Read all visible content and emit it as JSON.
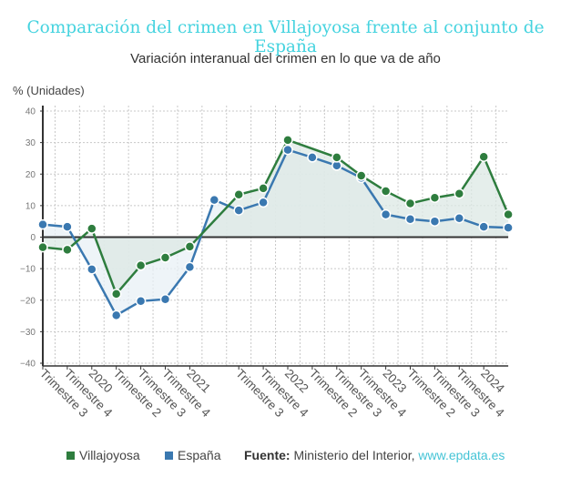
{
  "header": {
    "title": "Comparación del crimen en Villajoyosa frente al conjunto de España",
    "subtitle": "Variación interanual del crimen en lo que va de año",
    "y_unit": "% (Unidades)"
  },
  "legend": {
    "items": [
      {
        "label": "Villajoyosa",
        "color": "#2e7d3e"
      },
      {
        "label": "España",
        "color": "#3a78b0"
      }
    ],
    "source_label": "Fuente:",
    "source_text": "Ministerio del Interior,",
    "source_link": "www.epdata.es"
  },
  "colors": {
    "title": "#45d3df",
    "villajoyosa": "#2e7d3e",
    "espana": "#3a78b0",
    "area_fill": "#e6eff2"
  },
  "chart_data": {
    "type": "line",
    "title": "Comparación del crimen en Villajoyosa frente al conjunto de España",
    "subtitle": "Variación interanual del crimen en lo que va de año",
    "xlabel": "",
    "ylabel": "% (Unidades)",
    "ylim": [
      -40,
      40
    ],
    "yticks": [
      40,
      30,
      20,
      10,
      0,
      -10,
      -20,
      -30,
      -40
    ],
    "grid": true,
    "legend_position": "bottom",
    "x_labels": [
      "Trimestre 3",
      "Trimestre 4",
      "2020",
      "Trimestre 2",
      "Trimestre 3",
      "Trimestre 4",
      "2021",
      "",
      "Trimestre 3",
      "Trimestre 4",
      "2022",
      "Trimestre 2",
      "Trimestre 3",
      "Trimestre 4",
      "2023",
      "Trimestre 2",
      "Trimestre 3",
      "Trimestre 4",
      "2024",
      ""
    ],
    "series": [
      {
        "name": "Villajoyosa",
        "values": [
          -3.2,
          -4.0,
          2.7,
          -18.0,
          -9.0,
          -6.5,
          -3.0,
          null,
          13.5,
          15.5,
          30.8,
          null,
          25.3,
          19.5,
          14.6,
          10.7,
          12.5,
          13.8,
          25.5,
          7.2
        ]
      },
      {
        "name": "España",
        "values": [
          4.0,
          3.3,
          -10.2,
          -24.8,
          -20.3,
          -19.7,
          -9.5,
          11.8,
          8.5,
          11.0,
          27.7,
          25.3,
          22.7,
          18.8,
          7.2,
          5.7,
          5.0,
          6.0,
          3.3,
          3.0
        ]
      }
    ]
  }
}
